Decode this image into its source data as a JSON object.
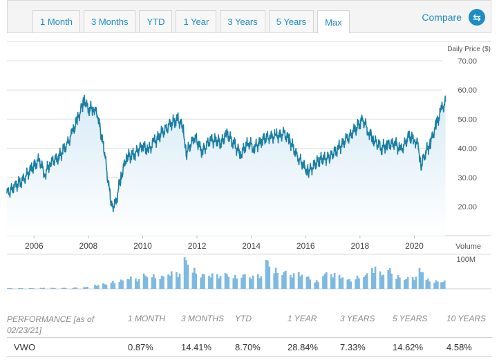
{
  "tabs": [
    "1 Month",
    "3 Months",
    "YTD",
    "1 Year",
    "3 Years",
    "5 Years",
    "Max"
  ],
  "active_tab": "Max",
  "compare_label": "Compare",
  "compare_icon": "swap-arrows-icon",
  "colors": {
    "accent": "#1a8dc4",
    "line": "#1a7fa3",
    "volume": "#7db9e0",
    "area": "#e8f3fa"
  },
  "chart_data": [
    {
      "type": "area",
      "ylabel": "Daily Price ($)",
      "yticks": [
        "70.00",
        "60.00",
        "50.00",
        "40.00",
        "30.00",
        "20.00"
      ],
      "ylim": [
        10,
        72
      ],
      "xticks": [
        "2006",
        "2008",
        "2010",
        "2012",
        "2014",
        "2016",
        "2018",
        "2020"
      ],
      "xlim": [
        2005.0,
        2021.16
      ],
      "series": [
        {
          "x": [
            2005.0,
            2005.3,
            2005.6,
            2005.9,
            2006.2,
            2006.4,
            2006.6,
            2006.9,
            2007.2,
            2007.4,
            2007.6,
            2007.8,
            2007.85,
            2008.0,
            2008.2,
            2008.35,
            2008.6,
            2008.75,
            2008.85,
            2009.0,
            2009.2,
            2009.4,
            2009.7,
            2010.0,
            2010.2,
            2010.4,
            2010.7,
            2011.0,
            2011.3,
            2011.5,
            2011.6,
            2011.9,
            2012.2,
            2012.5,
            2012.9,
            2013.1,
            2013.4,
            2013.6,
            2013.9,
            2014.1,
            2014.4,
            2014.7,
            2014.9,
            2015.2,
            2015.4,
            2015.7,
            2016.0,
            2016.1,
            2016.5,
            2016.9,
            2017.2,
            2017.5,
            2017.8,
            2018.1,
            2018.3,
            2018.5,
            2018.8,
            2019.0,
            2019.3,
            2019.5,
            2019.8,
            2020.0,
            2020.15,
            2020.25,
            2020.4,
            2020.6,
            2020.8,
            2021.0,
            2021.15
          ],
          "values": [
            24.5,
            27,
            29,
            33,
            36,
            31,
            35,
            37,
            41,
            45,
            50,
            55,
            57,
            53,
            54,
            51,
            38,
            27,
            20,
            21,
            30,
            37,
            38,
            41,
            39,
            42,
            45,
            48,
            50,
            47,
            38,
            44,
            39,
            43,
            42,
            45,
            41,
            38,
            42,
            40,
            43,
            44,
            44,
            45,
            43,
            37,
            33,
            32,
            36,
            37,
            40,
            43,
            46,
            50,
            46,
            43,
            40,
            41,
            42,
            39,
            44,
            43,
            41,
            34,
            38,
            42,
            48,
            53,
            56
          ]
        }
      ]
    },
    {
      "type": "bar",
      "ylabel": "Volume",
      "yticks": [
        "100M"
      ],
      "ylim": [
        0,
        100
      ],
      "x": [
        2005.1,
        2005.5,
        2005.9,
        2006.3,
        2006.7,
        2007.1,
        2007.5,
        2007.9,
        2008.3,
        2008.6,
        2008.9,
        2009.2,
        2009.5,
        2009.8,
        2010.1,
        2010.4,
        2010.7,
        2011.0,
        2011.3,
        2011.6,
        2011.9,
        2012.2,
        2012.5,
        2012.8,
        2013.1,
        2013.4,
        2013.7,
        2014.0,
        2014.3,
        2014.6,
        2014.9,
        2015.2,
        2015.5,
        2015.8,
        2016.1,
        2016.4,
        2016.7,
        2017.0,
        2017.3,
        2017.6,
        2017.9,
        2018.2,
        2018.5,
        2018.8,
        2019.1,
        2019.4,
        2019.7,
        2020.0,
        2020.25,
        2020.5,
        2020.8,
        2021.05
      ],
      "values": [
        2,
        2,
        2,
        3,
        3,
        3,
        4,
        6,
        12,
        16,
        22,
        28,
        35,
        30,
        45,
        42,
        40,
        50,
        48,
        95,
        60,
        46,
        44,
        42,
        48,
        40,
        45,
        38,
        42,
        90,
        60,
        55,
        45,
        48,
        38,
        25,
        50,
        46,
        40,
        30,
        38,
        46,
        65,
        50,
        62,
        40,
        34,
        36,
        60,
        30,
        25,
        24
      ]
    }
  ],
  "performance": {
    "header": {
      "label": "PERFORMANCE [as of 02/23/21]",
      "columns": [
        "1 MONTH",
        "3 MONTHS",
        "YTD",
        "1 YEAR",
        "3 YEARS",
        "5 YEARS",
        "10 YEARS"
      ]
    },
    "rows": [
      {
        "ticker": "VWO",
        "values": [
          "0.87%",
          "14.41%",
          "8.70%",
          "28.84%",
          "7.33%",
          "14.62%",
          "4.58%"
        ]
      }
    ]
  }
}
